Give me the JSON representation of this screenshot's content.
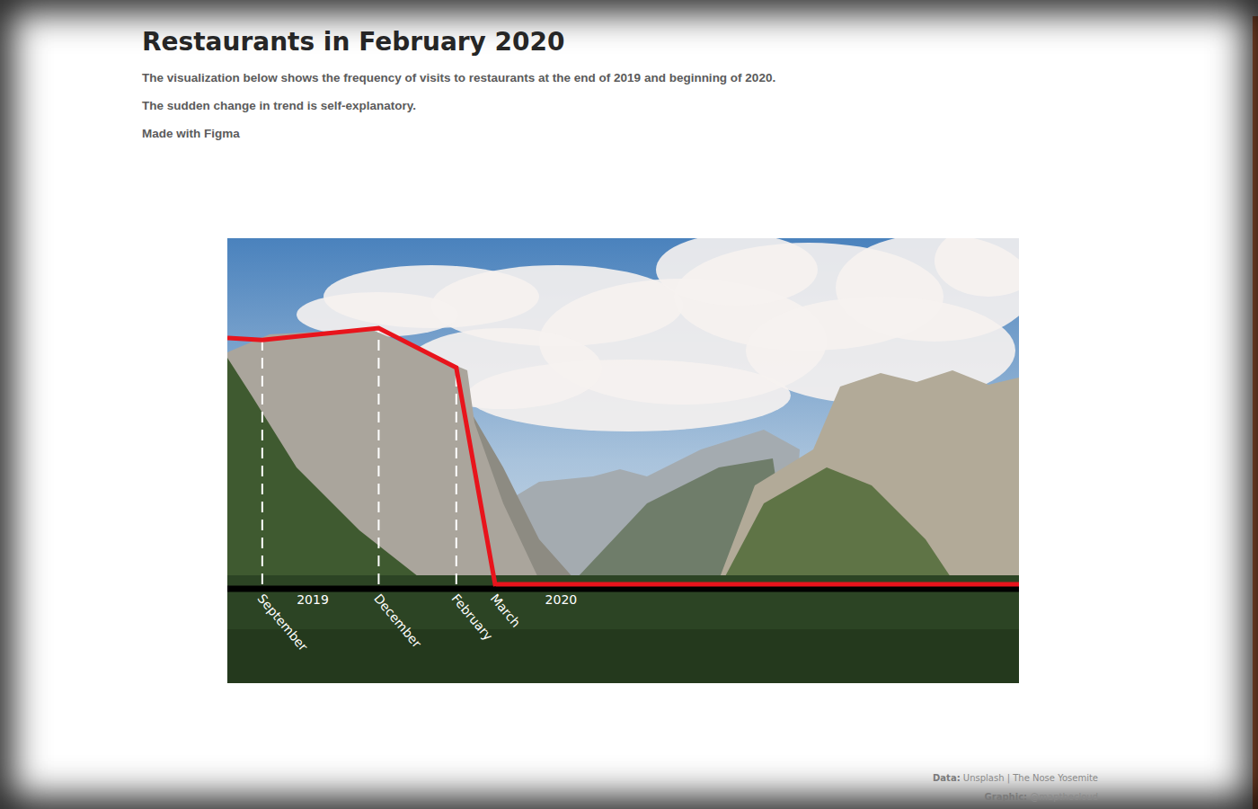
{
  "chart_data": {
    "type": "line",
    "title": "Restaurants in February 2020",
    "subtitle": [
      "The visualization below shows the frequency of visits to restaurants at the end of 2019 and beginning of 2020.",
      "The sudden change in trend is self-explanatory.",
      "Made with Figma"
    ],
    "x": [
      8.1,
      9,
      12,
      14,
      15,
      28.5
    ],
    "values": [
      71.2,
      70.6,
      74,
      62.6,
      0,
      0
    ],
    "color": "#e8141c",
    "xlim": [
      8.1,
      28.5
    ],
    "xticks": [
      {
        "value": 9,
        "label": "September"
      },
      {
        "value": 12,
        "label": "December"
      },
      {
        "value": 14,
        "label": "February"
      },
      {
        "value": 15,
        "label": "March"
      }
    ],
    "ylim": [
      0,
      100
    ],
    "tick_labels": "x",
    "grid": true,
    "annotations": [
      {
        "text": "2019",
        "x": 10.3
      },
      {
        "text": "2020",
        "x": 16.7
      }
    ],
    "footer": [
      {
        "label": "Data:",
        "text": "Unsplash | The Nose Yosemite"
      },
      {
        "label": "Graphic:",
        "text": "@mapthecloud"
      }
    ]
  }
}
